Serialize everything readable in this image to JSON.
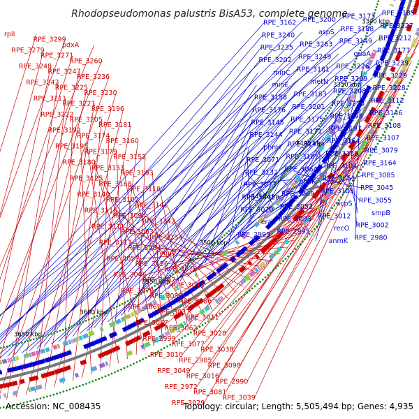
{
  "title": "Rhodopseudomonas palustris BisA53, complete genome",
  "accession": "Accession: NC_008435",
  "summary": "Topology: circular; Length: 5,505,494 bp; Genes: 4,935",
  "colors": {
    "reverse_strand": "#cc0000",
    "forward_strand": "#0000cc",
    "backbone": "#777777",
    "tick_dots": "#228822"
  },
  "kbp_ticks": [
    "3700 kbp",
    "3650 kbp",
    "3600 kbp",
    "3550 kbp",
    "3500 kbp",
    "3450 kbp",
    "3400 kbp",
    "3350 kbp",
    "3300 kbp"
  ],
  "left_labels": [
    "rplI",
    "RPE_3299",
    "pdxA",
    "RPE_3279",
    "RPE_3271",
    "RPE_3260",
    "RPE_3248",
    "RPE_3247",
    "RPE_3236",
    "RPE_3242",
    "RPE_3225",
    "RPE_3230",
    "RPE_3211",
    "RPE_3221",
    "RPE_3196",
    "RPE_3222",
    "RPE_3205",
    "RPE_3181",
    "RPE_3192",
    "RPE_3174",
    "RPE_3160",
    "RPE_3195",
    "RPE_3179",
    "RPE_3152",
    "RPE_3180",
    "RPE_3153",
    "RPE_3193",
    "RPE_3125",
    "RPE_3168",
    "RPE_3118",
    "RPE_3140",
    "RPE_3102",
    "RPE_3141",
    "RPE_3116",
    "RPE_3094",
    "RPE_3142",
    "RPE_3111",
    "RPE_3063",
    "RPE_3154",
    "RPE_3117",
    "RPE_3084",
    "hmuV",
    "RPE_3057",
    "RPE_3156",
    "RPE_3076",
    "RPE_3046",
    "RPE_3097",
    "RPE_3033",
    "RPE_3078",
    "RPE_3056",
    "RPE_3086",
    "RPE_3061",
    "RPE_3037",
    "RPE_3011",
    "RPE_3087",
    "RPE_3062",
    "RPE_3028",
    "RPE_2999",
    "RPE_3077",
    "RPE_3038",
    "RPE_3010",
    "RPE_2985",
    "RPE_3098",
    "RPE_3049",
    "RPE_3016",
    "RPE_2990",
    "RPE_2972",
    "RPE_3081",
    "RPE_3039",
    "RPE_3029"
  ],
  "right_labels": [
    "RPE_3185",
    "RPE_3173",
    "RPE_3200",
    "RPE_3162",
    "RPE_3227",
    "RPE_3188",
    "aspS",
    "RPE_3240",
    "RPE_3212",
    "RPE_3149",
    "RPE_3263",
    "RPE_3235",
    "RPE_3177",
    "guaA",
    "RPE_3249",
    "RPE_3202",
    "RPE_3239",
    "RPE_3226",
    "RPE_3161",
    "minC",
    "RPE_3229",
    "RPE_3209",
    "metN",
    "minE",
    "RPE_3228",
    "RPE_3208",
    "RPE_3183",
    "RPE_3158",
    "RPE_3112",
    "RPE_3220",
    "RPE_3201",
    "RPE_3176",
    "RPE_3146",
    "RPE_3198",
    "RPE_3175",
    "RPE_3145",
    "RPE_3108",
    "RPE_3197",
    "RPE_3171",
    "RPE_3144",
    "RPE_3107",
    "RPE_3164",
    "RPE_3143",
    "phnH",
    "RPE_3079",
    "RPE_3139",
    "RPE_3105",
    "RPE_3071",
    "RPE_3164",
    "RPE_3104",
    "RPE_3064",
    "RPE_3132",
    "RPE_3085",
    "RPE_3051",
    "phnK",
    "RPE_3073",
    "RPE_3045",
    "RPE_3103",
    "RPE_3069",
    "RPE_3041",
    "RPE_3055",
    "acpS",
    "RPE_3053",
    "RPE_3020",
    "smpB",
    "RPE_3012",
    "RPE_3093",
    "era",
    "RPE_3002",
    "recO",
    "RPE_2995",
    "RPE_2993",
    "RPE_2980",
    "anmK"
  ]
}
